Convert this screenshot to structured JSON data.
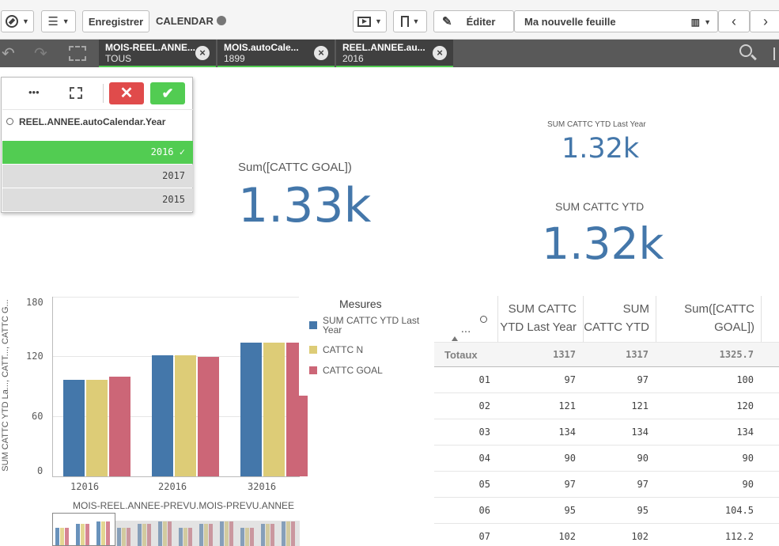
{
  "toolbar": {
    "save_label": "Enregistrer",
    "app_title": "CALENDAR",
    "edit_label": "Éditer",
    "sheet_name": "Ma nouvelle feuille"
  },
  "selections": [
    {
      "field": "MOIS-REEL.ANNE...",
      "value": "TOUS"
    },
    {
      "field": "MOIS.autoCale...",
      "value": "1899"
    },
    {
      "field": "REEL.ANNEE.au...",
      "value": "2016"
    }
  ],
  "filter_popup": {
    "more_label": "•••",
    "search_label": "REEL.ANNEE.autoCalendar.Year",
    "items": [
      {
        "label": "2016",
        "selected": true
      },
      {
        "label": "2017",
        "selected": false
      },
      {
        "label": "2015",
        "selected": false
      }
    ]
  },
  "kpis": {
    "goal": {
      "label": "Sum([CATTC GOAL])",
      "value": "1.33k"
    },
    "ytd_last_year": {
      "label": "SUM CATTC YTD Last Year",
      "value": "1.32k"
    },
    "ytd": {
      "label": "SUM CATTC YTD",
      "value": "1.32k"
    }
  },
  "chart_data": {
    "type": "bar",
    "title": "",
    "xlabel": "MOIS-REEL.ANNEE-PREVU.MOIS-PREVU.ANNEE",
    "ylabel": "SUM CATTC YTD La..., CATT..., CATTC G...",
    "ylim": [
      0,
      180
    ],
    "yticks": [
      "0",
      "60",
      "120",
      "180"
    ],
    "categories": [
      "12016",
      "22016",
      "32016"
    ],
    "legend_title": "Mesures",
    "legend_position": "right",
    "series": [
      {
        "name": "SUM CATTC YTD Last Year",
        "color": "#4477aa",
        "values": [
          97,
          121,
          134
        ]
      },
      {
        "name": "CATTC N",
        "color": "#ddcc77",
        "values": [
          97,
          121,
          134
        ]
      },
      {
        "name": "CATTC GOAL",
        "color": "#cc6677",
        "values": [
          100,
          120,
          134
        ]
      }
    ],
    "minimap_groups": 12
  },
  "table": {
    "dim_header": "...",
    "headers": [
      "SUM CATTC YTD Last Year",
      "SUM CATTC YTD",
      "Sum([CATTC GOAL])"
    ],
    "totals_label": "Totaux",
    "totals": [
      "1317",
      "1317",
      "1325.7"
    ],
    "rows": [
      [
        "01",
        "97",
        "97",
        "100"
      ],
      [
        "02",
        "121",
        "121",
        "120"
      ],
      [
        "03",
        "134",
        "134",
        "134"
      ],
      [
        "04",
        "90",
        "90",
        "90"
      ],
      [
        "05",
        "97",
        "97",
        "90"
      ],
      [
        "06",
        "95",
        "95",
        "104.5"
      ],
      [
        "07",
        "102",
        "102",
        "112.2"
      ]
    ]
  }
}
